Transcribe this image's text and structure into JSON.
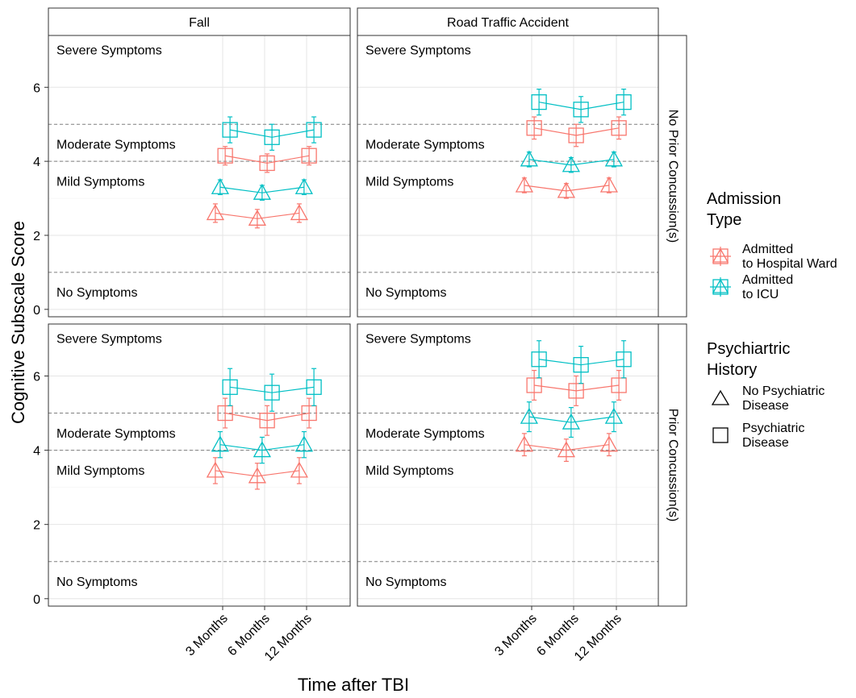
{
  "chart_data": {
    "type": "line",
    "xlabel": "Time after TBI",
    "ylabel": "Cognitive Subscale Score",
    "categories": [
      "3 Months",
      "6 Months",
      "12 Months"
    ],
    "y_ticks": [
      0,
      2,
      4,
      6
    ],
    "ylim": [
      -0.2,
      7.4
    ],
    "grid": true,
    "col_facets": [
      "Fall",
      "Road Traffic Accident"
    ],
    "row_facets": [
      "No Prior Concussion(s)",
      "Prior Concussion(s)"
    ],
    "thresholds": [
      {
        "value": 1,
        "style": "dashed"
      },
      {
        "value": 4,
        "style": "dashed"
      },
      {
        "value": 5,
        "style": "dashed"
      }
    ],
    "severity_labels": [
      {
        "text": "Severe Symptoms",
        "y": 7.0
      },
      {
        "text": "Moderate Symptoms",
        "y": 4.45
      },
      {
        "text": "Mild Symptoms",
        "y": 3.45
      },
      {
        "text": "No Symptoms",
        "y": 0.45
      }
    ],
    "legend": {
      "placement": "right",
      "admission_title": "Admission Type",
      "admission_items": [
        {
          "label": "Admitted to Hospital Ward",
          "color": "#F8766D"
        },
        {
          "label": "Admitted to ICU",
          "color": "#00BFC4"
        }
      ],
      "history_title": "Psychiartric History",
      "history_items": [
        {
          "label": "No Psychiatric Disease",
          "shape": "triangle"
        },
        {
          "label": "Psychiatric Disease",
          "shape": "square"
        }
      ]
    },
    "panels": [
      {
        "col": 0,
        "row": 0,
        "series": [
          {
            "admission": 0,
            "history": 0,
            "values": [
              2.6,
              2.45,
              2.6
            ],
            "err": [
              0.25,
              0.25,
              0.25
            ]
          },
          {
            "admission": 1,
            "history": 0,
            "values": [
              3.3,
              3.15,
              3.3
            ],
            "err": [
              0.2,
              0.2,
              0.2
            ]
          },
          {
            "admission": 0,
            "history": 1,
            "values": [
              4.15,
              3.95,
              4.15
            ],
            "err": [
              0.25,
              0.25,
              0.25
            ]
          },
          {
            "admission": 1,
            "history": 1,
            "values": [
              4.85,
              4.65,
              4.85
            ],
            "err": [
              0.35,
              0.35,
              0.35
            ]
          }
        ]
      },
      {
        "col": 1,
        "row": 0,
        "series": [
          {
            "admission": 0,
            "history": 0,
            "values": [
              3.35,
              3.2,
              3.35
            ],
            "err": [
              0.2,
              0.2,
              0.2
            ]
          },
          {
            "admission": 1,
            "history": 0,
            "values": [
              4.05,
              3.9,
              4.05
            ],
            "err": [
              0.2,
              0.2,
              0.2
            ]
          },
          {
            "admission": 0,
            "history": 1,
            "values": [
              4.9,
              4.7,
              4.9
            ],
            "err": [
              0.3,
              0.3,
              0.3
            ]
          },
          {
            "admission": 1,
            "history": 1,
            "values": [
              5.6,
              5.4,
              5.6
            ],
            "err": [
              0.35,
              0.35,
              0.35
            ]
          }
        ]
      },
      {
        "col": 0,
        "row": 1,
        "series": [
          {
            "admission": 0,
            "history": 0,
            "values": [
              3.45,
              3.3,
              3.45
            ],
            "err": [
              0.35,
              0.35,
              0.35
            ]
          },
          {
            "admission": 1,
            "history": 0,
            "values": [
              4.15,
              4.0,
              4.15
            ],
            "err": [
              0.35,
              0.35,
              0.35
            ]
          },
          {
            "admission": 0,
            "history": 1,
            "values": [
              5.0,
              4.8,
              5.0
            ],
            "err": [
              0.4,
              0.4,
              0.4
            ]
          },
          {
            "admission": 1,
            "history": 1,
            "values": [
              5.7,
              5.55,
              5.7
            ],
            "err": [
              0.5,
              0.5,
              0.5
            ]
          }
        ]
      },
      {
        "col": 1,
        "row": 1,
        "series": [
          {
            "admission": 0,
            "history": 0,
            "values": [
              4.15,
              4.0,
              4.15
            ],
            "err": [
              0.3,
              0.3,
              0.3
            ]
          },
          {
            "admission": 1,
            "history": 0,
            "values": [
              4.9,
              4.75,
              4.9
            ],
            "err": [
              0.4,
              0.4,
              0.4
            ]
          },
          {
            "admission": 0,
            "history": 1,
            "values": [
              5.75,
              5.6,
              5.75
            ],
            "err": [
              0.4,
              0.4,
              0.4
            ]
          },
          {
            "admission": 1,
            "history": 1,
            "values": [
              6.45,
              6.3,
              6.45
            ],
            "err": [
              0.5,
              0.5,
              0.5
            ]
          }
        ]
      }
    ]
  }
}
